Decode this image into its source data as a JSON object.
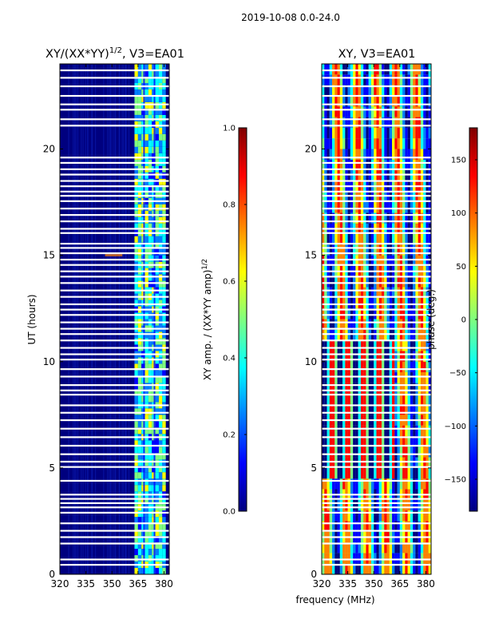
{
  "suptitle": "2019-10-08 0.0-24.0",
  "xlabel_shared": "frequency (MHz)",
  "colors": {
    "jet": [
      "#00007f",
      "#0000ff",
      "#007fff",
      "#00ffff",
      "#7fff7f",
      "#ffff00",
      "#ff7f00",
      "#ff0000",
      "#7f0000"
    ],
    "gap": "#ffffff"
  },
  "chart_data": [
    {
      "type": "heatmap",
      "title_main": "XY/(XX*YY)",
      "title_sup": "1/2",
      "title_tail": ", V3=EA01",
      "ylabel": "UT (hours)",
      "xlim": [
        320,
        383
      ],
      "ylim": [
        0,
        24
      ],
      "xticks": [
        320,
        335,
        350,
        365,
        380
      ],
      "yticks": [
        0,
        5,
        10,
        15,
        20
      ],
      "colorbar": {
        "label_main": "XY amp. / (XX*YY amp)",
        "label_sup": "1/2",
        "range": [
          0.0,
          1.0
        ],
        "ticks": [
          "0.0",
          "0.2",
          "0.4",
          "0.6",
          "0.8",
          "1.0"
        ],
        "tick_values": [
          0.0,
          0.2,
          0.4,
          0.6,
          0.8,
          1.0
        ]
      }
    },
    {
      "type": "heatmap",
      "title": "XY, V3=EA01",
      "xlim": [
        320,
        383
      ],
      "ylim": [
        0,
        24
      ],
      "xticks": [
        320,
        335,
        350,
        365,
        380
      ],
      "yticks": [
        0,
        5,
        10,
        15,
        20
      ],
      "colorbar": {
        "label": "phase (deg.)",
        "range": [
          -180,
          180
        ],
        "ticks": [
          "150",
          "100",
          "50",
          "0",
          "−50",
          "−100",
          "−150"
        ],
        "tick_values": [
          150,
          100,
          50,
          0,
          -50,
          -100,
          -150
        ]
      }
    }
  ],
  "flag_gaps_ut": [
    0.45,
    0.7,
    1.45,
    1.75,
    2.05,
    2.4,
    2.9,
    3.15,
    3.35,
    3.55,
    3.75,
    4.4,
    5.05,
    5.3,
    5.65,
    6.05,
    6.45,
    6.85,
    7.25,
    7.6,
    7.95,
    8.45,
    8.65,
    8.9,
    9.3,
    9.65,
    10.1,
    10.35,
    10.65,
    11.0,
    11.3,
    11.55,
    11.85,
    12.2,
    12.45,
    12.7,
    13.05,
    13.35,
    13.7,
    14.0,
    14.25,
    14.55,
    14.8,
    15.1,
    15.35,
    15.55,
    16.05,
    16.25,
    16.6,
    16.9,
    17.2,
    17.55,
    17.8,
    18.0,
    18.25,
    18.5,
    18.8,
    19.05,
    19.35,
    19.6,
    21.1,
    21.4,
    21.85,
    22.1,
    22.5,
    22.95,
    23.35,
    23.7
  ]
}
